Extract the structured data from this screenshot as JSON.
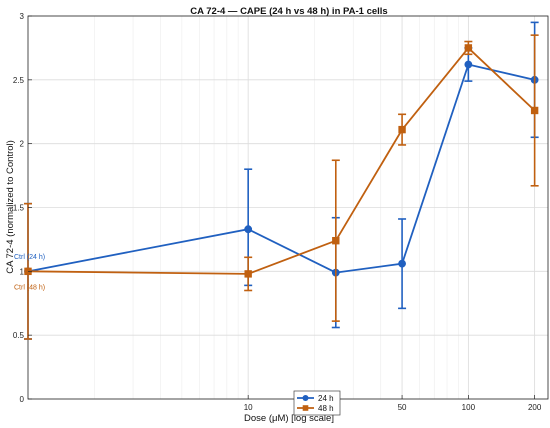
{
  "chart_data": {
    "type": "line",
    "title": "CA 72-4 — CAPE (24 h vs 48 h) in PA-1 cells",
    "xlabel": "Dose (μM) [log scale]",
    "ylabel": "CA 72-4 (normalized to Control)",
    "x_scale": "log",
    "xlim": [
      1,
      230
    ],
    "ylim": [
      0,
      3
    ],
    "x_ticks": [
      10,
      50,
      100,
      200
    ],
    "x_tick_labels": [
      "10",
      "50",
      "100",
      "200"
    ],
    "y_ticks": [
      0,
      0.5,
      1,
      1.5,
      2,
      2.5,
      3
    ],
    "y_tick_labels": [
      "0",
      "0.5",
      "1",
      "1.5",
      "2",
      "2.5",
      "3"
    ],
    "grid": true,
    "legend_position": "bottom-center",
    "series": [
      {
        "name": "24 h",
        "color": "#2060c0",
        "marker": "circle",
        "x": [
          1,
          10,
          25,
          50,
          100,
          200
        ],
        "y": [
          1.0,
          1.33,
          0.99,
          1.06,
          2.62,
          2.5
        ],
        "err_low": [
          0.53,
          0.44,
          0.43,
          0.35,
          0.13,
          0.45
        ],
        "err_high": [
          0.53,
          0.47,
          0.43,
          0.35,
          0.13,
          0.45
        ]
      },
      {
        "name": "48 h",
        "color": "#c06010",
        "marker": "square",
        "x": [
          1,
          10,
          25,
          50,
          100,
          200
        ],
        "y": [
          1.0,
          0.98,
          1.24,
          2.11,
          2.75,
          2.26
        ],
        "err_low": [
          0.53,
          0.13,
          0.63,
          0.12,
          0.05,
          0.59
        ],
        "err_high": [
          0.53,
          0.13,
          0.63,
          0.12,
          0.05,
          0.59
        ]
      }
    ],
    "annotations": [
      {
        "text": "Ctrl (24 h)",
        "x": 1,
        "y": 1.12,
        "color": "#2060c0"
      },
      {
        "text": "Ctrl (48 h)",
        "x": 1,
        "y": 0.88,
        "color": "#c06010"
      }
    ]
  }
}
